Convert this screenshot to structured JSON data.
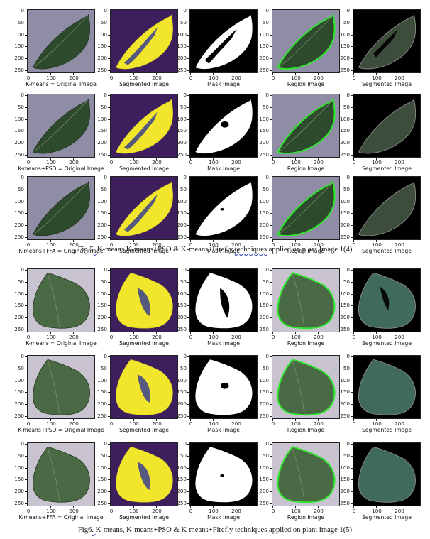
{
  "axes": {
    "yticks": [
      "0",
      "50",
      "100",
      "150",
      "200",
      "250"
    ],
    "xticks": [
      "0",
      "100",
      "200"
    ]
  },
  "figure5": {
    "rows": [
      {
        "labels": [
          "K-means = Original Image",
          "Segmented Image",
          "Mask Image",
          "Region Image",
          "Segmented Image"
        ]
      },
      {
        "labels": [
          "K-means+PSO = Original Image",
          "Segmented Image",
          "Mask Image",
          "Region Image",
          "Segmented Image"
        ]
      },
      {
        "labels": [
          "K-means+FFA = Original Image",
          "Segmented Image",
          "Mask Image",
          "Region Image",
          "Segmented Image"
        ]
      }
    ],
    "caption": {
      "prefix": "Fig 5",
      "mark": ". ",
      "middle": "K-means,K-means+PSO & K-means+Firefly ",
      "squiggly": "techniques",
      "suffix": " applied on plant Image 1(4)"
    }
  },
  "figure6": {
    "rows": [
      {
        "labels": [
          "K-means = Original Image",
          "Segmented Image",
          "Mask Image",
          "Region Image",
          "Segmented Image"
        ]
      },
      {
        "labels": [
          "K-means+PSO = Original Image",
          "Segmented Image",
          "Mask Image",
          "Region Image",
          "Segmented Image"
        ]
      },
      {
        "labels": [
          "K-means+FFA = Original Image",
          "Segmented Image",
          "Mask Image",
          "Region Image",
          "Segmented Image"
        ]
      }
    ],
    "caption": {
      "prefix": "Fig6",
      "mark": ". ",
      "middle": "K-means, K-means+PSO & K-means+Firefly techniques applied on plant image 1(5)"
    }
  },
  "colors": {
    "original_bg": "#8f8ca6",
    "leaf_dark": "#2e4a2c",
    "segmented_bg": "#3d1f5e",
    "segmented_leaf": "#f2e62c",
    "mask_bg": "#000000",
    "mask_leaf": "#ffffff",
    "region_outline": "#2ee82e"
  }
}
